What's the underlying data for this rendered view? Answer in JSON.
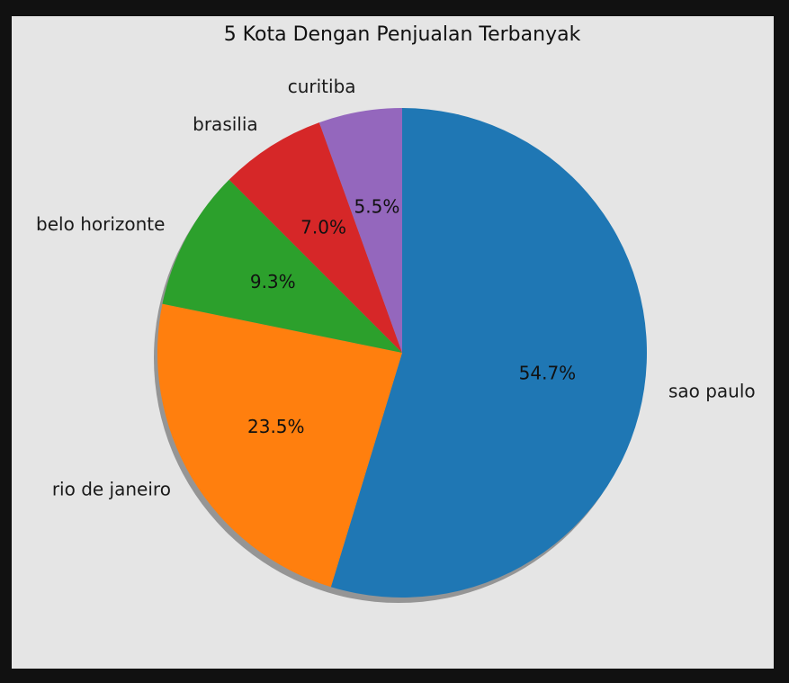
{
  "chart_data": {
    "type": "pie",
    "title": "5 Kota Dengan Penjualan Terbanyak",
    "categories": [
      "sao paulo",
      "rio de janeiro",
      "belo horizonte",
      "brasilia",
      "curitiba"
    ],
    "values": [
      54.7,
      23.5,
      9.3,
      7.0,
      5.5
    ],
    "value_labels": [
      "54.7%",
      "23.5%",
      "9.3%",
      "7.0%",
      "5.5%"
    ],
    "colors": [
      "#1f77b4",
      "#ff7f0e",
      "#2ca02c",
      "#d62728",
      "#9467bd"
    ],
    "start_angle": 90,
    "direction": "clockwise",
    "shadow": true,
    "legend": "none"
  }
}
